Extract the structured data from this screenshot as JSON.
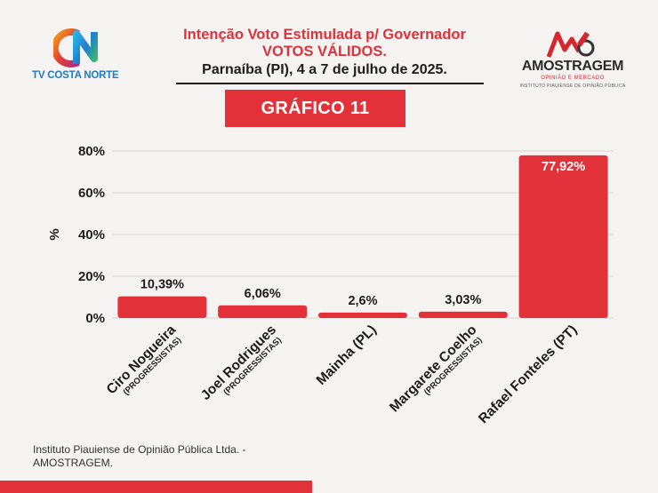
{
  "header": {
    "title_line1": "Intenção Voto Estimulada p/ Governador",
    "title_line2": "VOTOS VÁLIDOS.",
    "title_line3": "Parnaíba (PI), 4 a 7 de julho de 2025.",
    "badge": "GRÁFICO 11"
  },
  "logo_left": {
    "name": "TV COSTA NORTE",
    "icon": "cn-logo-icon"
  },
  "logo_right": {
    "name": "AMOSTRAGEM",
    "tagline": "OPINIÃO E MERCADO",
    "subtitle": "INSTITUTO PIAUIENSE DE OPINIÃO PÚBLICA",
    "icon": "amostragem-logo-icon"
  },
  "footer": {
    "source": "Instituto Piauiense de Opinião Pública Ltda. - AMOSTRAGEM."
  },
  "colors": {
    "bar": "#e33139",
    "accent": "#e0313a",
    "background": "#f4f3f1"
  },
  "chart_data": {
    "type": "bar",
    "ylabel": "%",
    "ylim": [
      0,
      80
    ],
    "yticks": [
      "0%",
      "20%",
      "40%",
      "60%",
      "80%"
    ],
    "grid": true,
    "categories": [
      {
        "name": "Ciro Nogueira",
        "party": "(PROGRESSISTAS)"
      },
      {
        "name": "Joel Rodrigues",
        "party": "(PROGRESSISTAS)"
      },
      {
        "name": "Mainha (PL)",
        "party": ""
      },
      {
        "name": "Margarete Coelho",
        "party": "(PROGRESSISTAS)"
      },
      {
        "name": "Rafael Fonteles (PT)",
        "party": ""
      }
    ],
    "values": [
      10.39,
      6.06,
      2.6,
      3.03,
      77.92
    ],
    "value_labels": [
      "10,39%",
      "6,06%",
      "2,6%",
      "3,03%",
      "77,92%"
    ]
  }
}
